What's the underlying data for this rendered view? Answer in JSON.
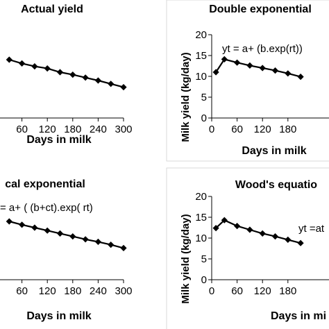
{
  "chart_data": [
    {
      "type": "line",
      "title": "Actual yield",
      "xlabel": "Days in milk",
      "ylabel": "",
      "equation": "",
      "xlim": [
        0,
        300
      ],
      "ylim": [
        0,
        20
      ],
      "x_ticks": [
        60,
        120,
        180,
        240,
        300
      ],
      "y_ticks": [],
      "series": [
        {
          "x": [
            30,
            60,
            90,
            120,
            150,
            180,
            210,
            240,
            270,
            300
          ],
          "y": [
            14.0,
            13.1,
            12.4,
            11.9,
            11.0,
            10.4,
            9.7,
            9.0,
            8.2,
            7.4
          ]
        }
      ]
    },
    {
      "type": "line",
      "title": "Double exponential",
      "xlabel": "Days in milk",
      "ylabel": "Milk yield (kg/day)",
      "equation": "yt = a+ (b.exp(rt))",
      "xlim": [
        0,
        300
      ],
      "ylim": [
        0,
        20
      ],
      "x_ticks": [
        0,
        60,
        120,
        180
      ],
      "y_ticks": [
        0,
        5,
        10,
        15,
        20
      ],
      "series": [
        {
          "x": [
            10,
            30,
            60,
            90,
            120,
            150,
            180,
            210
          ],
          "y": [
            11.0,
            14.1,
            13.3,
            12.6,
            12.0,
            11.4,
            10.7,
            9.9
          ]
        }
      ]
    },
    {
      "type": "line",
      "title": "cal exponential",
      "xlabel": "Days in milk",
      "ylabel": "",
      "equation": "= a+ ( (b+ct).exp( rt)",
      "xlim": [
        0,
        300
      ],
      "ylim": [
        0,
        20
      ],
      "x_ticks": [
        60,
        120,
        180,
        240,
        300
      ],
      "y_ticks": [],
      "series": [
        {
          "x": [
            30,
            60,
            90,
            120,
            150,
            180,
            210,
            240,
            270,
            300
          ],
          "y": [
            14.0,
            13.2,
            12.5,
            11.8,
            11.1,
            10.4,
            9.7,
            9.1,
            8.4,
            7.6
          ]
        }
      ]
    },
    {
      "type": "line",
      "title": "Wood's equatio",
      "xlabel": "Days in mi",
      "ylabel": "Milk yield (kg/day)",
      "equation": "yt =at",
      "xlim": [
        0,
        300
      ],
      "ylim": [
        0,
        20
      ],
      "x_ticks": [
        0,
        60,
        120,
        180
      ],
      "y_ticks": [
        0,
        5,
        10,
        15,
        20
      ],
      "series": [
        {
          "x": [
            10,
            30,
            60,
            90,
            120,
            150,
            180,
            210
          ],
          "y": [
            12.4,
            14.3,
            12.9,
            12.0,
            11.1,
            10.4,
            9.6,
            8.8
          ]
        }
      ]
    }
  ]
}
